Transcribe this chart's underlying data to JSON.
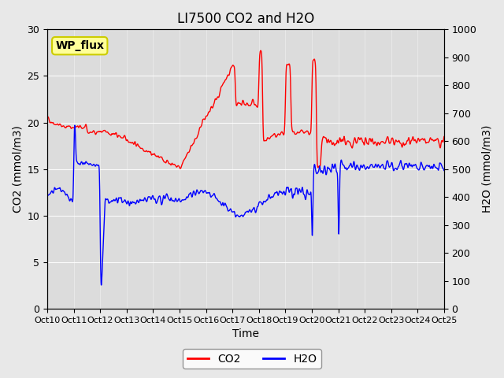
{
  "title": "LI7500 CO2 and H2O",
  "xlabel": "Time",
  "ylabel_left": "CO2 (mmol/m3)",
  "ylabel_right": "H2O (mmol/m3)",
  "ylim_left": [
    0,
    30
  ],
  "ylim_right": [
    0,
    1000
  ],
  "yticks_left": [
    0,
    5,
    10,
    15,
    20,
    25,
    30
  ],
  "yticks_right": [
    0,
    100,
    200,
    300,
    400,
    500,
    600,
    700,
    800,
    900,
    1000
  ],
  "xtick_labels": [
    "Oct 10",
    "Oct 11",
    "Oct 12",
    "Oct 13",
    "Oct 14",
    "Oct 15",
    "Oct 16",
    "Oct 17",
    "Oct 18",
    "Oct 19",
    "Oct 20",
    "Oct 21",
    "Oct 22",
    "Oct 23",
    "Oct 24",
    "Oct 25"
  ],
  "co2_color": "#FF0000",
  "h2o_color": "#0000FF",
  "background_color": "#E8E8E8",
  "plot_bg_color": "#DCDCDC",
  "legend_label_co2": "CO2",
  "legend_label_h2o": "H2O",
  "annotation_text": "WP_flux",
  "annotation_bg": "#FFFF99",
  "annotation_border": "#CCCC00",
  "title_fontsize": 12,
  "label_fontsize": 10,
  "tick_fontsize": 9
}
